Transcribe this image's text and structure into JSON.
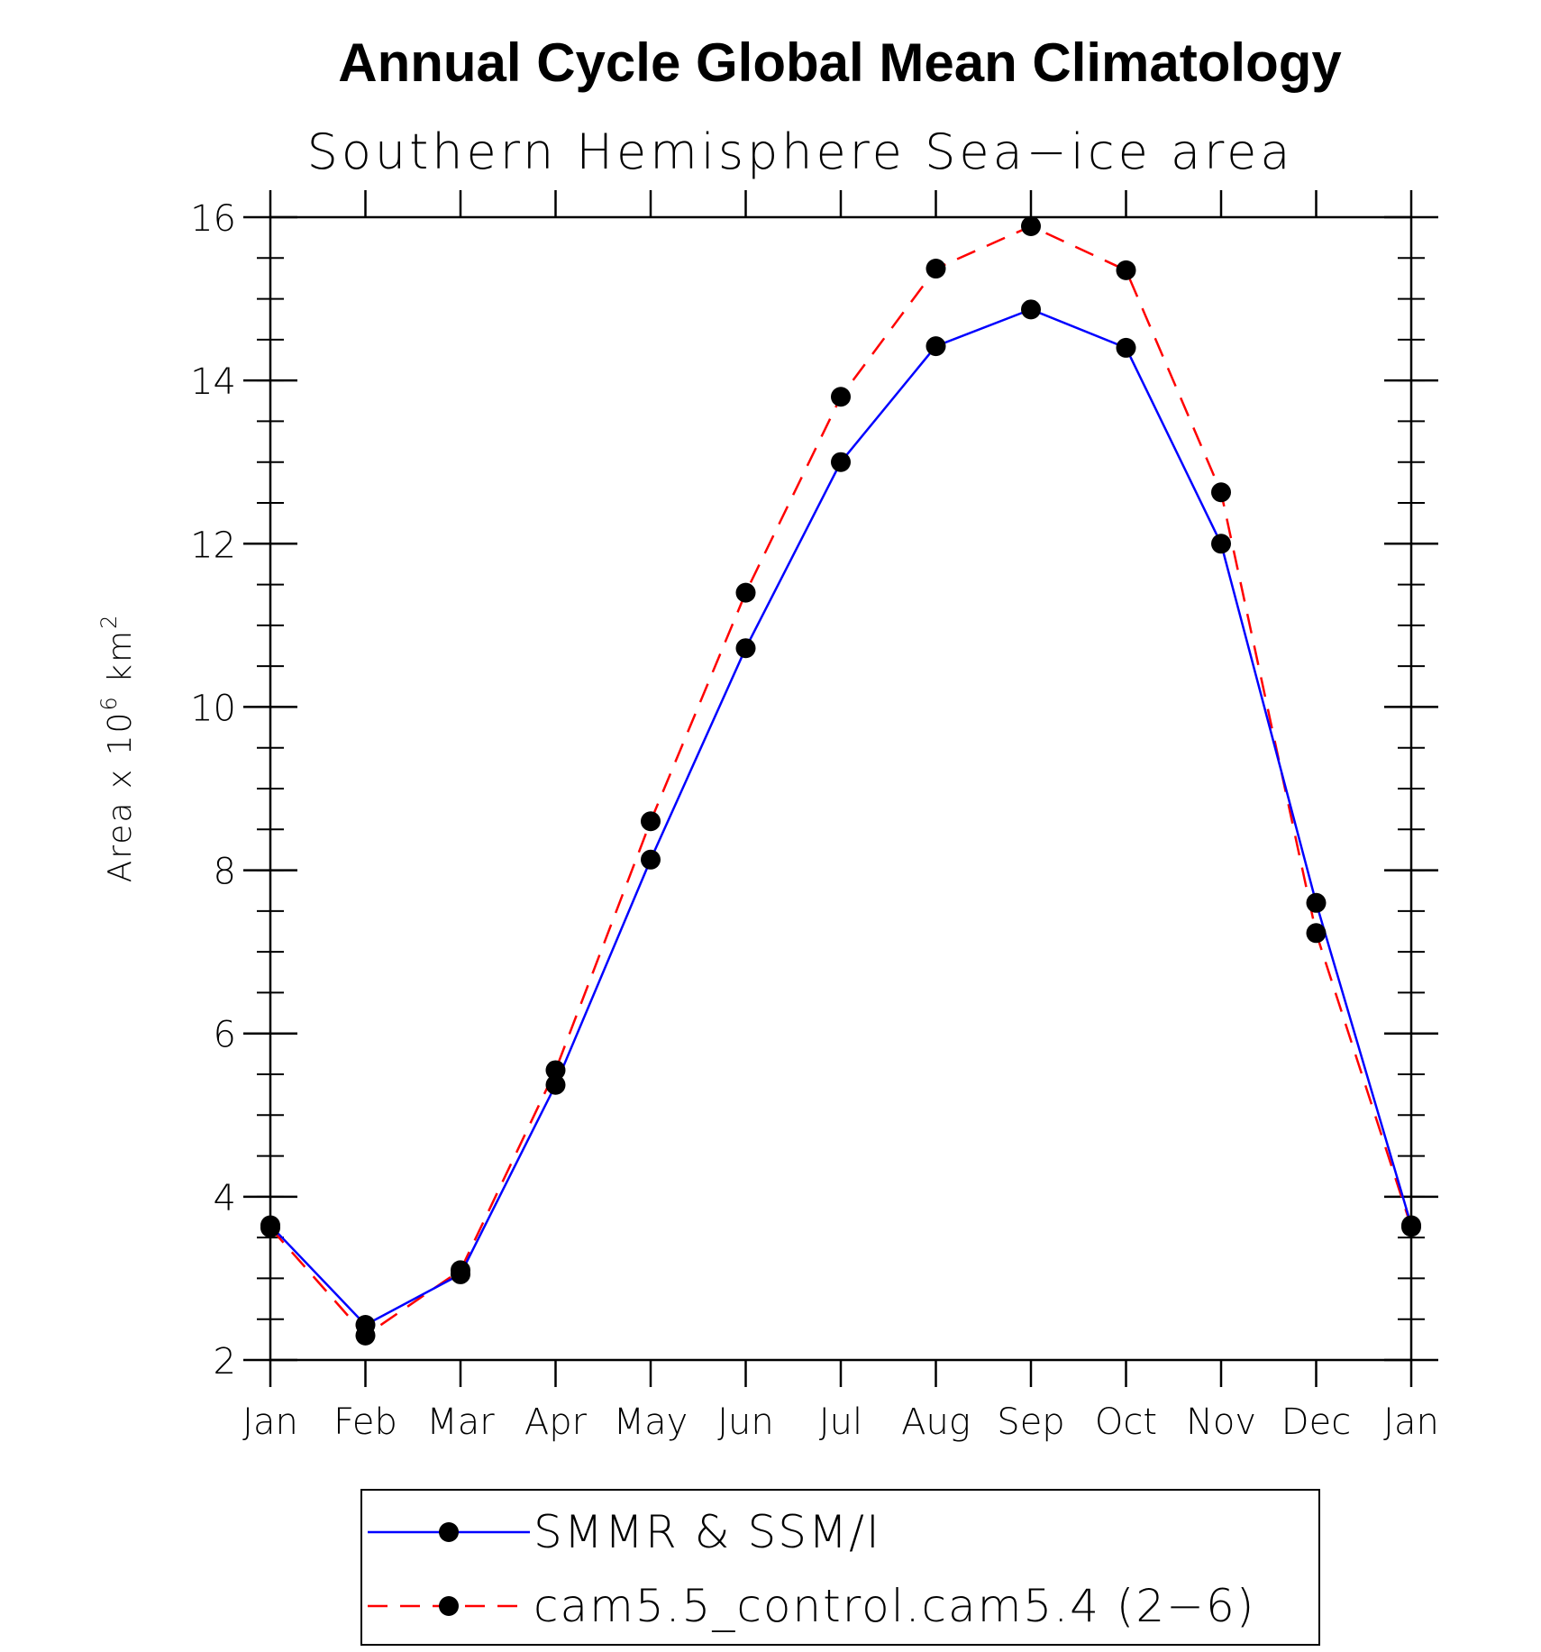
{
  "chart_data": {
    "type": "line",
    "title": "Annual Cycle Global Mean Climatology",
    "subtitle": "Southern Hemisphere Sea−ice area",
    "ylabel": "Area x 10",
    "ylabel_sup": "6",
    "ylabel_unit": "km",
    "ylabel_unit_sup": "2",
    "xlabel": "",
    "categories": [
      "Jan",
      "Feb",
      "Mar",
      "Apr",
      "May",
      "Jun",
      "Jul",
      "Aug",
      "Sep",
      "Oct",
      "Nov",
      "Dec",
      "Jan"
    ],
    "ylim": [
      2,
      16
    ],
    "yticks": [
      2,
      4,
      6,
      8,
      10,
      12,
      14,
      16
    ],
    "series": [
      {
        "name": "SMMR & SSM/I",
        "color": "#0000ff",
        "dash": "solid",
        "values": [
          3.65,
          2.43,
          3.05,
          5.37,
          8.13,
          10.72,
          13.0,
          14.42,
          14.87,
          14.4,
          12.0,
          7.6,
          3.65
        ]
      },
      {
        "name": "cam5.5_control.cam5.4 (2−6)",
        "color": "#ff0000",
        "dash": "dashed",
        "values": [
          3.62,
          2.3,
          3.1,
          5.55,
          8.6,
          11.4,
          13.8,
          15.37,
          15.89,
          15.35,
          12.63,
          7.23,
          3.63
        ]
      }
    ],
    "marker": "filled-circle",
    "legend_position": "bottom"
  }
}
